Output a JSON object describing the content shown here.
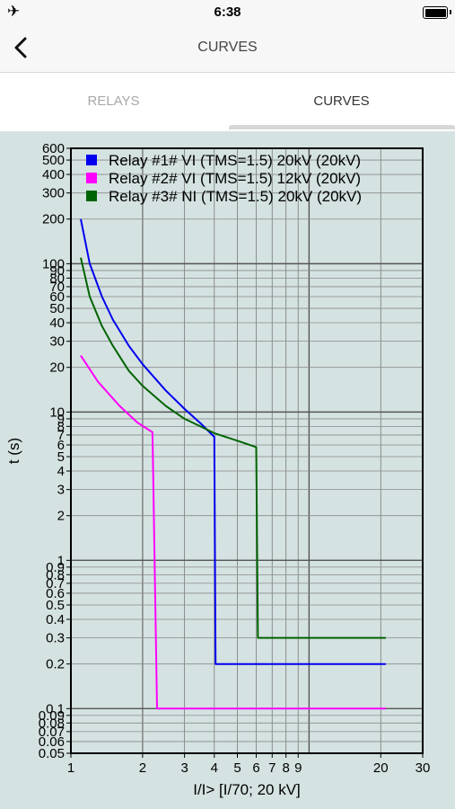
{
  "status_bar": {
    "time": "6:38",
    "airplane_icon": "airplane-icon",
    "battery_icon": "battery-icon"
  },
  "nav": {
    "back_icon": "chevron-left-icon",
    "title": "CURVES"
  },
  "tabs": [
    {
      "label": "RELAYS",
      "selected": false
    },
    {
      "label": "CURVES",
      "selected": true
    }
  ],
  "colors": {
    "plot_background": "#d4e2e1",
    "grid": "#777777",
    "frame": "#000000"
  },
  "chart_data": {
    "type": "line",
    "xscale": "log",
    "yscale": "log",
    "xlim": [
      1,
      30
    ],
    "ylim": [
      0.05,
      600
    ],
    "xlabel": "I/I> [I/70; 20 kV]",
    "ylabel": "t (s)",
    "grid": true,
    "legend_position": "top-left",
    "x_ticks": [
      {
        "value": 1,
        "label": "1"
      },
      {
        "value": 2,
        "label": "2"
      },
      {
        "value": 3,
        "label": "3"
      },
      {
        "value": 4,
        "label": "4"
      },
      {
        "value": 5,
        "label": "5"
      },
      {
        "value": 6,
        "label": "6"
      },
      {
        "value": 7,
        "label": "7"
      },
      {
        "value": 8,
        "label": "8"
      },
      {
        "value": 9,
        "label": "9"
      },
      {
        "value": 20,
        "label": "20"
      },
      {
        "value": 30,
        "label": "30"
      }
    ],
    "x_major_lines": [
      2,
      10
    ],
    "y_ticks": [
      {
        "value": 600,
        "label": "600"
      },
      {
        "value": 500,
        "label": "500"
      },
      {
        "value": 400,
        "label": "400"
      },
      {
        "value": 300,
        "label": "300"
      },
      {
        "value": 200,
        "label": "200"
      },
      {
        "value": 100,
        "label": "100"
      },
      {
        "value": 90,
        "label": "90"
      },
      {
        "value": 80,
        "label": "80"
      },
      {
        "value": 70,
        "label": "70"
      },
      {
        "value": 60,
        "label": "60"
      },
      {
        "value": 50,
        "label": "50"
      },
      {
        "value": 40,
        "label": "40"
      },
      {
        "value": 30,
        "label": "30"
      },
      {
        "value": 20,
        "label": "20"
      },
      {
        "value": 10,
        "label": "10"
      },
      {
        "value": 9,
        "label": "9"
      },
      {
        "value": 8,
        "label": "8"
      },
      {
        "value": 7,
        "label": "7"
      },
      {
        "value": 6,
        "label": "6"
      },
      {
        "value": 5,
        "label": "5"
      },
      {
        "value": 4,
        "label": "4"
      },
      {
        "value": 3,
        "label": "3"
      },
      {
        "value": 2,
        "label": "2"
      },
      {
        "value": 1,
        "label": "1"
      },
      {
        "value": 0.9,
        "label": "0.9"
      },
      {
        "value": 0.8,
        "label": "0.8"
      },
      {
        "value": 0.7,
        "label": "0.7"
      },
      {
        "value": 0.6,
        "label": "0.6"
      },
      {
        "value": 0.5,
        "label": "0.5"
      },
      {
        "value": 0.4,
        "label": "0.4"
      },
      {
        "value": 0.3,
        "label": "0.3"
      },
      {
        "value": 0.2,
        "label": "0.2"
      },
      {
        "value": 0.1,
        "label": "0.1"
      },
      {
        "value": 0.09,
        "label": "0.09"
      },
      {
        "value": 0.08,
        "label": "0.08"
      },
      {
        "value": 0.07,
        "label": "0.07"
      },
      {
        "value": 0.06,
        "label": "0.06"
      },
      {
        "value": 0.05,
        "label": "0.05"
      }
    ],
    "y_major_lines": [
      0.1,
      1,
      10,
      100
    ],
    "series": [
      {
        "name": "Relay #1# VI (TMS=1.5) 20kV (20kV)",
        "color": "#0000ee",
        "points": [
          [
            1.1,
            200
          ],
          [
            1.2,
            100
          ],
          [
            1.35,
            60
          ],
          [
            1.5,
            42
          ],
          [
            1.75,
            28
          ],
          [
            2,
            21
          ],
          [
            2.5,
            14
          ],
          [
            3,
            10.5
          ],
          [
            3.5,
            8.4
          ],
          [
            4,
            6.8
          ],
          [
            4.05,
            0.2
          ],
          [
            21,
            0.2
          ]
        ]
      },
      {
        "name": "Relay #2# VI (TMS=1.5) 12kV (20kV)",
        "color": "#ff00ff",
        "points": [
          [
            1.1,
            24
          ],
          [
            1.3,
            16
          ],
          [
            1.6,
            11
          ],
          [
            1.9,
            8.5
          ],
          [
            2.2,
            7.3
          ],
          [
            2.3,
            0.1
          ],
          [
            21,
            0.1
          ]
        ]
      },
      {
        "name": "Relay #3# NI (TMS=1.5) 20kV (20kV)",
        "color": "#006400",
        "points": [
          [
            1.1,
            110
          ],
          [
            1.2,
            60
          ],
          [
            1.35,
            38
          ],
          [
            1.5,
            28
          ],
          [
            1.75,
            19
          ],
          [
            2,
            15
          ],
          [
            2.5,
            11
          ],
          [
            3,
            9
          ],
          [
            3.5,
            8
          ],
          [
            4,
            7.2
          ],
          [
            5,
            6.4
          ],
          [
            6,
            5.8
          ],
          [
            6.1,
            0.3
          ],
          [
            21,
            0.3
          ]
        ]
      }
    ]
  }
}
